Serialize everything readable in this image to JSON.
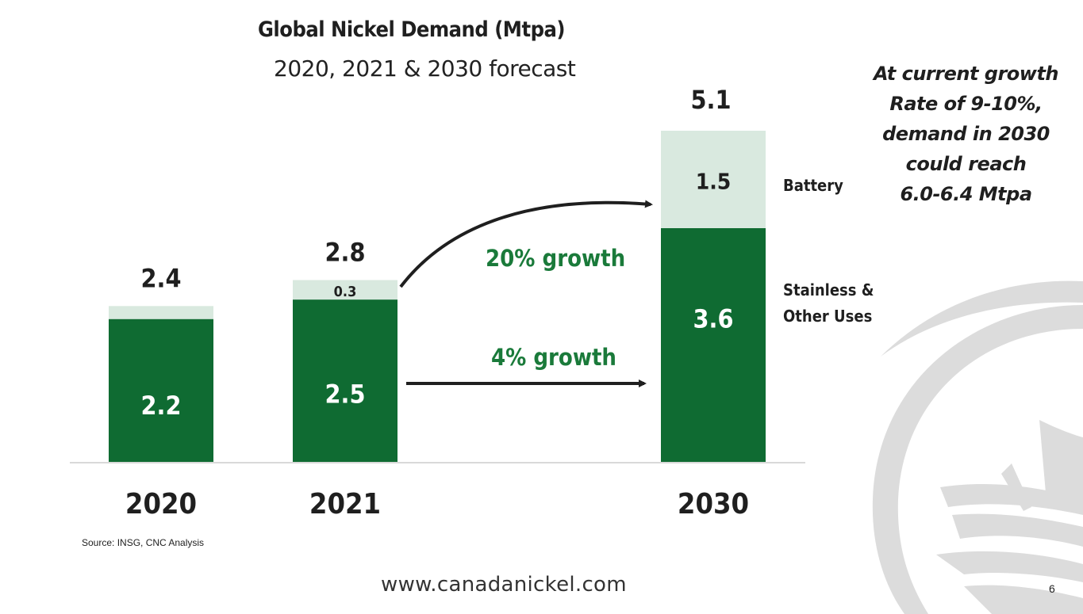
{
  "slide": {
    "title": "Global Nickel Demand (Mtpa)",
    "subtitle": "2020, 2021 & 2030 forecast",
    "note_lines": [
      "At current growth",
      "Rate of 9-10%,",
      "demand in 2030",
      "could reach",
      "6.0-6.4 Mtpa"
    ],
    "source": "Source: INSG, CNC Analysis",
    "website": "www.canadanickel.com",
    "page_number": "6"
  },
  "colors": {
    "stainless": "#0f6b32",
    "battery": "#d9e9df",
    "growth_text": "#1a7a3a",
    "text": "#1f1f1f"
  },
  "chart_data": {
    "type": "bar",
    "stacked": true,
    "title": "Global Nickel Demand (Mtpa)",
    "subtitle": "2020, 2021 & 2030 forecast",
    "xlabel": "",
    "ylabel": "Mtpa",
    "ylim": [
      0,
      5.1
    ],
    "grid": false,
    "categories": [
      "2020",
      "2021",
      "2030"
    ],
    "series": [
      {
        "name": "Stainless & Other Uses",
        "values": [
          2.2,
          2.5,
          3.6
        ],
        "labels": [
          "2.2",
          "2.5",
          "3.6"
        ]
      },
      {
        "name": "Battery",
        "values": [
          0.2,
          0.3,
          1.5
        ],
        "labels": [
          "",
          "0.3",
          "1.5"
        ]
      }
    ],
    "totals": [
      2.4,
      2.8,
      5.1
    ],
    "total_labels": [
      "2.4",
      "2.8",
      "5.1"
    ],
    "legend": [
      {
        "name": "Battery",
        "placement": "right of 2030 battery segment"
      },
      {
        "name_lines": [
          "Stainless &",
          "Other Uses"
        ],
        "placement": "right of 2030 stainless segment"
      }
    ],
    "annotations": [
      {
        "text": "20% growth",
        "from": "2021 battery",
        "to": "2030 battery",
        "style": "curved-arrow"
      },
      {
        "text": "4% growth",
        "from": "2021 stainless",
        "to": "2030 stainless",
        "style": "straight-arrow"
      }
    ]
  }
}
